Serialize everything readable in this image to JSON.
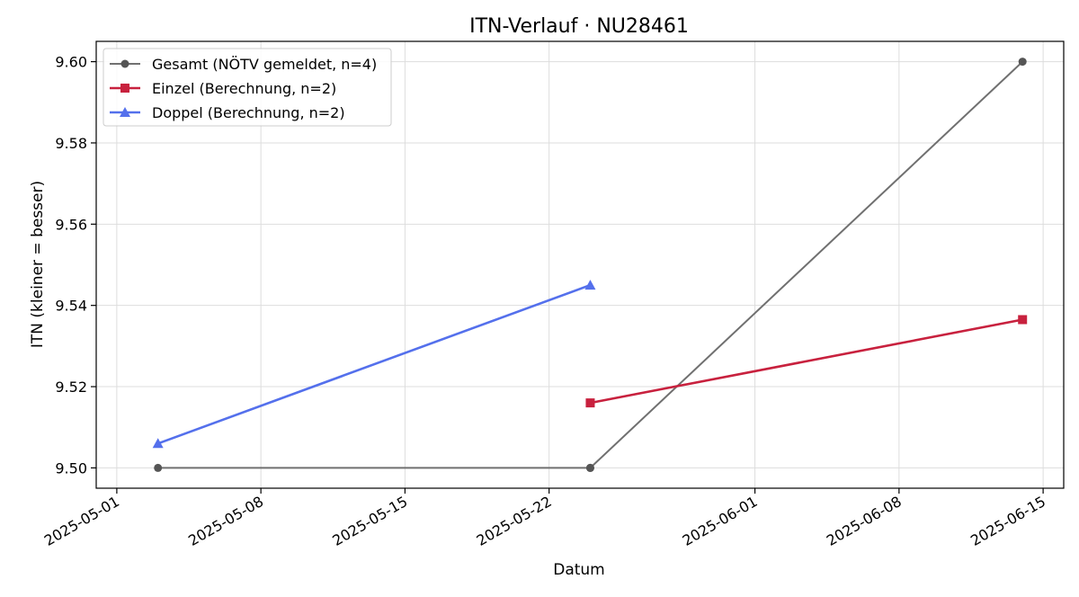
{
  "chart_data": {
    "type": "line",
    "title": "ITN-Verlauf · NU28461",
    "xlabel": "Datum",
    "ylabel": "ITN  (kleiner = besser)",
    "xlim": [
      "2025-04-30",
      "2025-06-16"
    ],
    "ylim": [
      9.495,
      9.605
    ],
    "x_ticks": [
      "2025-05-01",
      "2025-05-08",
      "2025-05-15",
      "2025-05-22",
      "2025-06-01",
      "2025-06-08",
      "2025-06-15"
    ],
    "y_ticks": [
      "9.50",
      "9.52",
      "9.54",
      "9.56",
      "9.58",
      "9.60"
    ],
    "grid": true,
    "legend_position": "top-left",
    "series": [
      {
        "name": "Gesamt (NÖTV gemeldet, n=4)",
        "color": "#707070",
        "marker": "circle",
        "points": [
          {
            "x": "2025-05-03",
            "y": 9.5
          },
          {
            "x": "2025-05-24",
            "y": 9.5
          },
          {
            "x": "2025-05-24",
            "y": 9.5
          },
          {
            "x": "2025-06-14",
            "y": 9.6
          }
        ]
      },
      {
        "name": "Einzel (Berechnung, n=2)",
        "color": "#c8213e",
        "marker": "square",
        "points": [
          {
            "x": "2025-05-24",
            "y": 9.516
          },
          {
            "x": "2025-06-14",
            "y": 9.5365
          }
        ]
      },
      {
        "name": "Doppel (Berechnung, n=2)",
        "color": "#5470ec",
        "marker": "triangle",
        "points": [
          {
            "x": "2025-05-03",
            "y": 9.506
          },
          {
            "x": "2025-05-24",
            "y": 9.545
          }
        ]
      }
    ]
  }
}
